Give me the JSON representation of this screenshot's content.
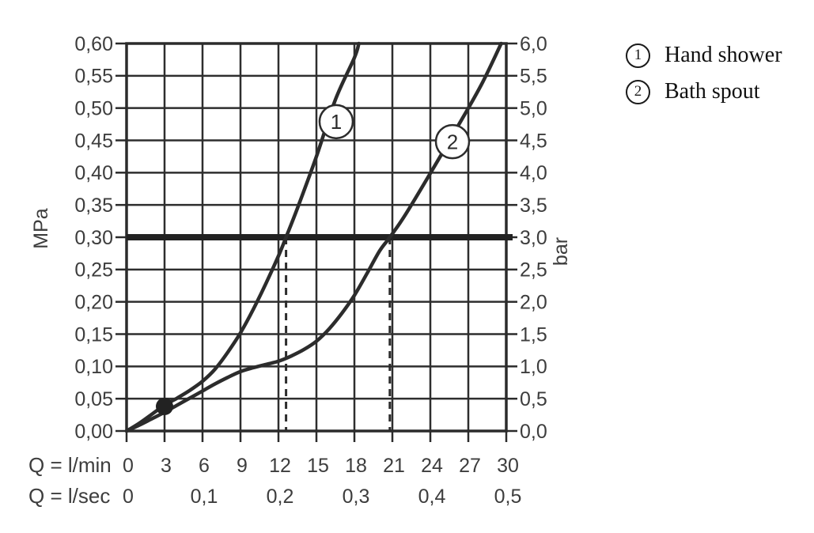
{
  "page": {
    "background": "#ffffff"
  },
  "colors": {
    "line": "#2c2c2c",
    "grid": "#2e2e2e",
    "text": "#3d3d3d",
    "legend_text": "#111111",
    "reference_line": "#222222"
  },
  "legend": {
    "items": [
      {
        "symbol": "1",
        "label": "Hand shower"
      },
      {
        "symbol": "2",
        "label": "Bath spout"
      }
    ]
  },
  "chart_data": {
    "type": "line",
    "title": "",
    "grid": true,
    "legend_position": "top-right",
    "xlim": [
      0,
      30
    ],
    "ylim": [
      0,
      0.6
    ],
    "x_axis_primary": {
      "caption": "Q = l/min",
      "ticks": [
        "0",
        "3",
        "6",
        "9",
        "12",
        "15",
        "18",
        "21",
        "24",
        "27",
        "30"
      ]
    },
    "x_axis_secondary": {
      "caption": "Q = l/sec",
      "ticks": [
        "0",
        "0,1",
        "0,2",
        "0,3",
        "0,4",
        "0,5"
      ]
    },
    "y_axis_left": {
      "unit": "MPa",
      "ticks": [
        "0,60",
        "0,55",
        "0,50",
        "0,45",
        "0,40",
        "0,35",
        "0,30",
        "0,25",
        "0,20",
        "0,15",
        "0,10",
        "0,05",
        "0,00"
      ]
    },
    "y_axis_right": {
      "unit": "bar",
      "ticks": [
        "6,0",
        "5,5",
        "5,0",
        "4,5",
        "4,0",
        "3,5",
        "3,0",
        "2,5",
        "2,0",
        "1,5",
        "1,0",
        "0,5",
        "0,0"
      ]
    },
    "series": [
      {
        "name": "Hand shower",
        "curve_label": "1",
        "label_pos": [
          16.56,
          0.479
        ],
        "flow_at_3bar_lmin": 12.6,
        "points": [
          [
            0,
            0
          ],
          [
            1,
            0.012
          ],
          [
            2,
            0.026
          ],
          [
            3,
            0.04
          ],
          [
            4,
            0.051
          ],
          [
            5,
            0.063
          ],
          [
            6,
            0.077
          ],
          [
            7,
            0.096
          ],
          [
            8,
            0.122
          ],
          [
            9,
            0.152
          ],
          [
            10,
            0.188
          ],
          [
            11,
            0.228
          ],
          [
            12,
            0.271
          ],
          [
            12.6,
            0.3
          ],
          [
            13.5,
            0.345
          ],
          [
            15,
            0.425
          ],
          [
            16.5,
            0.513
          ],
          [
            18,
            0.578
          ],
          [
            18.35,
            0.6
          ]
        ]
      },
      {
        "name": "Bath spout",
        "curve_label": "2",
        "label_pos": [
          25.75,
          0.448
        ],
        "flow_at_3bar_lmin": 20.8,
        "points": [
          [
            0,
            0
          ],
          [
            1,
            0.009
          ],
          [
            2,
            0.019
          ],
          [
            3,
            0.029
          ],
          [
            4,
            0.04
          ],
          [
            5,
            0.051
          ],
          [
            6,
            0.062
          ],
          [
            7,
            0.073
          ],
          [
            8,
            0.083
          ],
          [
            9,
            0.092
          ],
          [
            10,
            0.098
          ],
          [
            11,
            0.103
          ],
          [
            12,
            0.108
          ],
          [
            13,
            0.116
          ],
          [
            14,
            0.126
          ],
          [
            15,
            0.139
          ],
          [
            16,
            0.158
          ],
          [
            17,
            0.182
          ],
          [
            18,
            0.21
          ],
          [
            19,
            0.244
          ],
          [
            20,
            0.279
          ],
          [
            20.8,
            0.3
          ],
          [
            22,
            0.334
          ],
          [
            24,
            0.399
          ],
          [
            26,
            0.466
          ],
          [
            28,
            0.535
          ],
          [
            29.6,
            0.6
          ]
        ]
      }
    ],
    "reference_line": {
      "mpa": 0.3,
      "bar": 3.0
    },
    "guide_lines": [
      {
        "x_lmin": 12.6,
        "from_mpa": 0.3
      },
      {
        "x_lmin": 20.8,
        "from_mpa": 0.3
      }
    ],
    "point_marker": {
      "x_lmin": 3,
      "y_mpa": 0.038
    }
  }
}
